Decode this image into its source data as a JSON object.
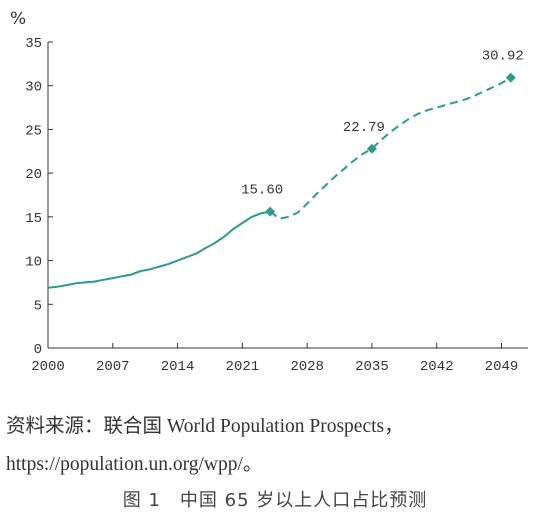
{
  "chart_data": {
    "type": "line",
    "unit_label": "%",
    "xlim": [
      2000,
      2051
    ],
    "ylim": [
      0,
      35
    ],
    "x_ticks": [
      "2000",
      "2007",
      "2014",
      "2021",
      "2028",
      "2035",
      "2042",
      "2049"
    ],
    "y_ticks": [
      "0",
      "5",
      "10",
      "15",
      "20",
      "25",
      "30",
      "35"
    ],
    "grid": false,
    "color": "#2e9a8c",
    "series": [
      {
        "style": "solid",
        "x": [
          2000,
          2001,
          2002,
          2003,
          2004,
          2005,
          2006,
          2007,
          2008,
          2009,
          2010,
          2011,
          2012,
          2013,
          2014,
          2015,
          2016,
          2017,
          2018,
          2019,
          2020,
          2021,
          2022,
          2023,
          2024
        ],
        "y": [
          6.9,
          7.0,
          7.2,
          7.4,
          7.5,
          7.6,
          7.8,
          8.0,
          8.2,
          8.4,
          8.8,
          9.0,
          9.3,
          9.6,
          10.0,
          10.4,
          10.8,
          11.4,
          12.0,
          12.7,
          13.6,
          14.3,
          15.0,
          15.4,
          15.6
        ]
      },
      {
        "style": "dashed",
        "x": [
          2024,
          2025,
          2026,
          2027,
          2028,
          2029,
          2030,
          2031,
          2032,
          2033,
          2034,
          2035,
          2036,
          2037,
          2038,
          2039,
          2040,
          2041,
          2042,
          2043,
          2044,
          2045,
          2046,
          2047,
          2048,
          2049,
          2050
        ],
        "y": [
          15.6,
          14.8,
          15.0,
          15.5,
          16.5,
          17.6,
          18.6,
          19.6,
          20.5,
          21.4,
          22.2,
          22.79,
          23.8,
          24.7,
          25.5,
          26.2,
          26.8,
          27.2,
          27.5,
          27.8,
          28.1,
          28.4,
          28.8,
          29.3,
          29.8,
          30.3,
          30.92
        ]
      }
    ],
    "markers": [
      {
        "x": 2024,
        "y": 15.6,
        "label": "15.60"
      },
      {
        "x": 2035,
        "y": 22.79,
        "label": "22.79"
      },
      {
        "x": 2050,
        "y": 30.92,
        "label": "30.92"
      }
    ]
  },
  "source_text": "资料来源：联合国 World Population Prospects，https://population.un.org/wpp/。",
  "caption": "图 1　中国 65 岁以上人口占比预测"
}
